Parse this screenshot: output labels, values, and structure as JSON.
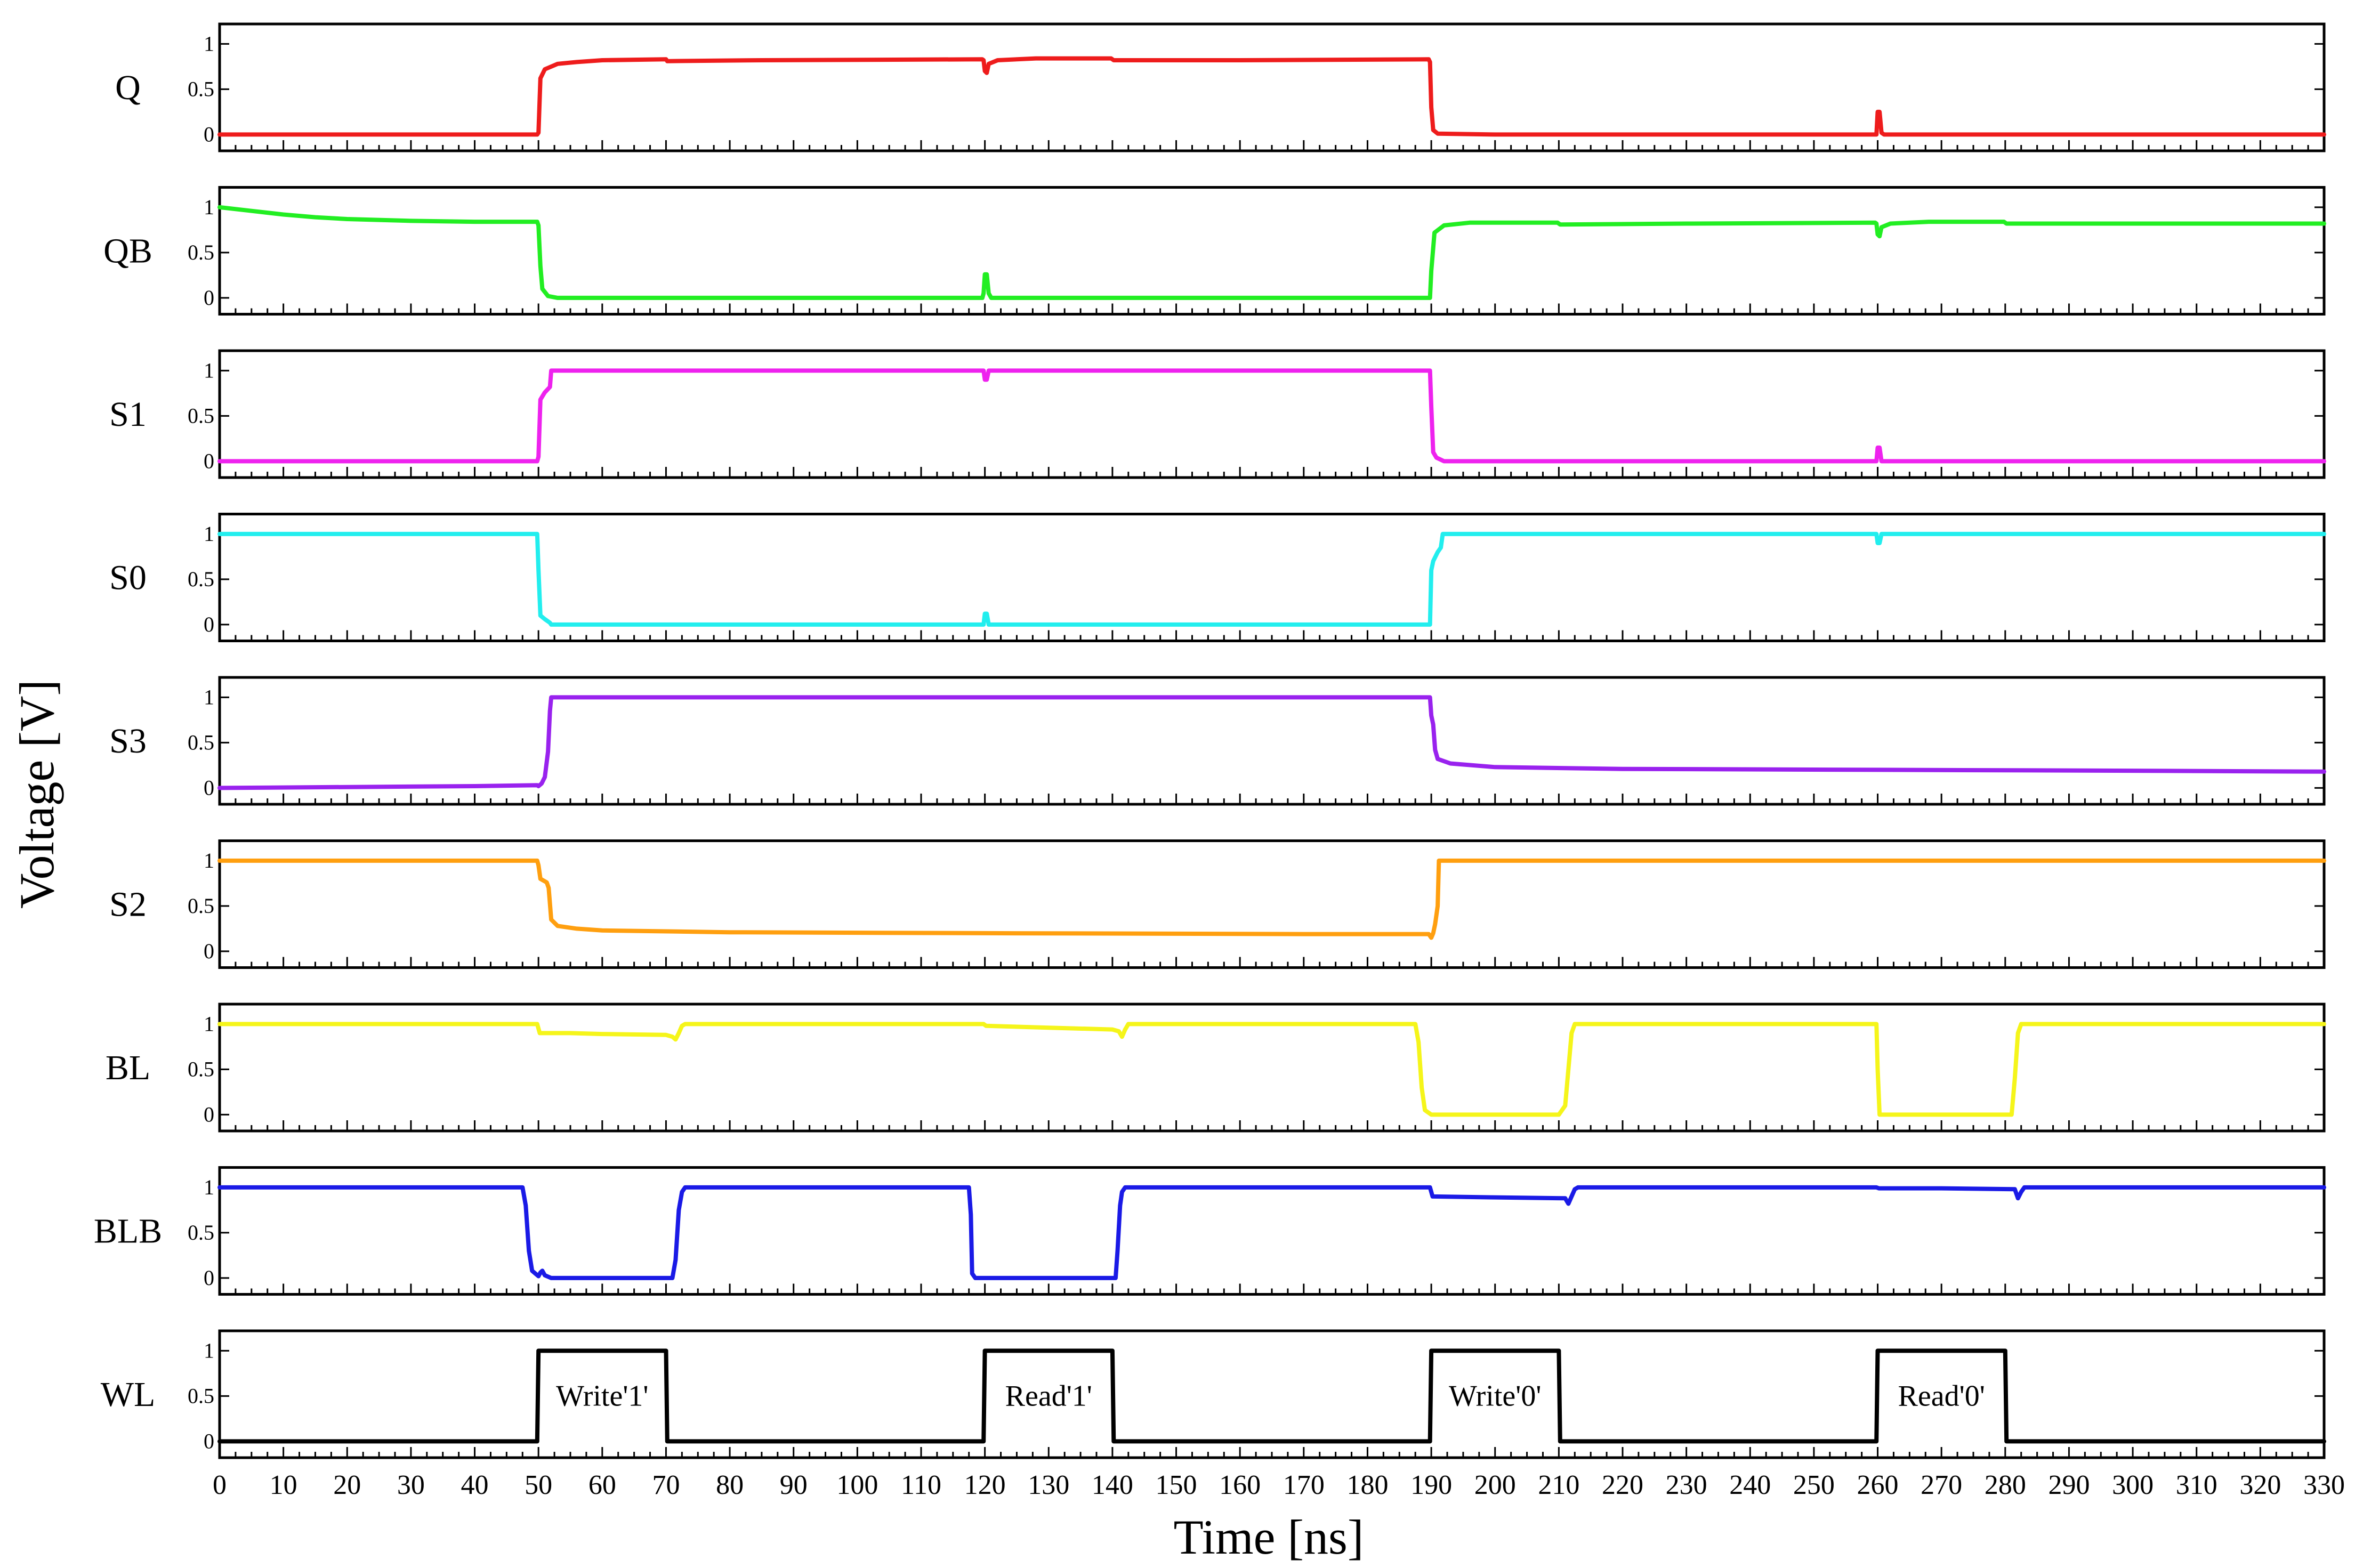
{
  "chart_data": {
    "type": "line",
    "title": "",
    "xlabel": "Time [ns]",
    "ylabel": "Voltage [V]",
    "xlim": [
      0,
      330
    ],
    "x_ticks": [
      0,
      10,
      20,
      30,
      40,
      50,
      60,
      70,
      80,
      90,
      100,
      110,
      120,
      130,
      140,
      150,
      160,
      170,
      180,
      190,
      200,
      210,
      220,
      230,
      240,
      250,
      260,
      270,
      280,
      290,
      300,
      310,
      320,
      330
    ],
    "ylim": [
      -0.18,
      1.22
    ],
    "y_ticks": [
      {
        "value": 0,
        "label": "0"
      },
      {
        "value": 0.5,
        "label": "0.5"
      },
      {
        "value": 1,
        "label": "1"
      }
    ],
    "grid": false,
    "series": [
      {
        "name": "Q",
        "color": "#ee1c1c",
        "points": [
          [
            0,
            0
          ],
          [
            49.8,
            0
          ],
          [
            50,
            0.02
          ],
          [
            50.3,
            0.62
          ],
          [
            51,
            0.72
          ],
          [
            53,
            0.78
          ],
          [
            56,
            0.8
          ],
          [
            60,
            0.82
          ],
          [
            70,
            0.83
          ],
          [
            70.2,
            0.81
          ],
          [
            85,
            0.82
          ],
          [
            119.6,
            0.83
          ],
          [
            119.8,
            0.82
          ],
          [
            120,
            0.7
          ],
          [
            120.3,
            0.68
          ],
          [
            120.6,
            0.78
          ],
          [
            122,
            0.82
          ],
          [
            128,
            0.84
          ],
          [
            139.8,
            0.84
          ],
          [
            140.2,
            0.82
          ],
          [
            160,
            0.82
          ],
          [
            189.6,
            0.83
          ],
          [
            189.8,
            0.8
          ],
          [
            190,
            0.3
          ],
          [
            190.3,
            0.05
          ],
          [
            191,
            0.01
          ],
          [
            200,
            0
          ],
          [
            259.8,
            0
          ],
          [
            260,
            0.25
          ],
          [
            260.3,
            0.25
          ],
          [
            260.6,
            0.02
          ],
          [
            261,
            0
          ],
          [
            330,
            0
          ]
        ]
      },
      {
        "name": "QB",
        "color": "#22ee22",
        "points": [
          [
            0,
            1.0
          ],
          [
            5,
            0.96
          ],
          [
            10,
            0.92
          ],
          [
            15,
            0.89
          ],
          [
            20,
            0.87
          ],
          [
            30,
            0.85
          ],
          [
            40,
            0.84
          ],
          [
            49.8,
            0.84
          ],
          [
            50,
            0.8
          ],
          [
            50.3,
            0.35
          ],
          [
            50.6,
            0.1
          ],
          [
            51.5,
            0.02
          ],
          [
            53,
            0
          ],
          [
            119.6,
            0
          ],
          [
            119.8,
            0.05
          ],
          [
            120,
            0.26
          ],
          [
            120.3,
            0.26
          ],
          [
            120.6,
            0.05
          ],
          [
            121,
            0
          ],
          [
            189.8,
            0
          ],
          [
            190,
            0.3
          ],
          [
            190.5,
            0.72
          ],
          [
            192,
            0.8
          ],
          [
            196,
            0.83
          ],
          [
            209.8,
            0.83
          ],
          [
            210.2,
            0.81
          ],
          [
            230,
            0.82
          ],
          [
            259.6,
            0.83
          ],
          [
            259.8,
            0.82
          ],
          [
            260,
            0.7
          ],
          [
            260.3,
            0.68
          ],
          [
            260.6,
            0.78
          ],
          [
            262,
            0.82
          ],
          [
            268,
            0.84
          ],
          [
            279.8,
            0.84
          ],
          [
            280.2,
            0.82
          ],
          [
            300,
            0.82
          ],
          [
            330,
            0.82
          ]
        ]
      },
      {
        "name": "S1",
        "color": "#ee22ee",
        "points": [
          [
            0,
            0
          ],
          [
            49.8,
            0
          ],
          [
            50,
            0.05
          ],
          [
            50.3,
            0.68
          ],
          [
            51,
            0.76
          ],
          [
            51.8,
            0.82
          ],
          [
            52,
            1.0
          ],
          [
            119.8,
            1.0
          ],
          [
            120,
            0.9
          ],
          [
            120.3,
            0.9
          ],
          [
            120.6,
            1.0
          ],
          [
            189.8,
            1.0
          ],
          [
            190,
            0.6
          ],
          [
            190.3,
            0.1
          ],
          [
            190.8,
            0.04
          ],
          [
            192,
            0
          ],
          [
            259.8,
            0
          ],
          [
            260,
            0.15
          ],
          [
            260.3,
            0.15
          ],
          [
            260.6,
            0
          ],
          [
            330,
            0
          ]
        ]
      },
      {
        "name": "S0",
        "color": "#22eeee",
        "points": [
          [
            0,
            1.0
          ],
          [
            49.8,
            1.0
          ],
          [
            50,
            0.6
          ],
          [
            50.3,
            0.1
          ],
          [
            51,
            0.06
          ],
          [
            51.8,
            0.02
          ],
          [
            52,
            0
          ],
          [
            119.8,
            0
          ],
          [
            120,
            0.12
          ],
          [
            120.3,
            0.12
          ],
          [
            120.6,
            0
          ],
          [
            189.8,
            0
          ],
          [
            190,
            0.6
          ],
          [
            190.3,
            0.7
          ],
          [
            191,
            0.8
          ],
          [
            191.5,
            0.85
          ],
          [
            191.8,
            1.0
          ],
          [
            259.8,
            1.0
          ],
          [
            260,
            0.9
          ],
          [
            260.3,
            0.9
          ],
          [
            260.6,
            1.0
          ],
          [
            330,
            1.0
          ]
        ]
      },
      {
        "name": "S3",
        "color": "#9922ee",
        "points": [
          [
            0,
            0
          ],
          [
            20,
            0.01
          ],
          [
            40,
            0.02
          ],
          [
            49.8,
            0.03
          ],
          [
            50,
            0.02
          ],
          [
            50.5,
            0.05
          ],
          [
            51,
            0.12
          ],
          [
            51.5,
            0.4
          ],
          [
            51.8,
            0.85
          ],
          [
            52,
            1.0
          ],
          [
            189.8,
            1.0
          ],
          [
            190,
            0.8
          ],
          [
            190.3,
            0.7
          ],
          [
            190.6,
            0.42
          ],
          [
            191,
            0.32
          ],
          [
            193,
            0.27
          ],
          [
            200,
            0.23
          ],
          [
            220,
            0.21
          ],
          [
            260,
            0.2
          ],
          [
            300,
            0.19
          ],
          [
            330,
            0.18
          ]
        ]
      },
      {
        "name": "S2",
        "color": "#ff9f0f",
        "points": [
          [
            0,
            1.0
          ],
          [
            49.8,
            1.0
          ],
          [
            50,
            0.95
          ],
          [
            50.3,
            0.8
          ],
          [
            51.3,
            0.76
          ],
          [
            51.6,
            0.7
          ],
          [
            52,
            0.35
          ],
          [
            53,
            0.28
          ],
          [
            56,
            0.25
          ],
          [
            60,
            0.23
          ],
          [
            80,
            0.21
          ],
          [
            120,
            0.2
          ],
          [
            170,
            0.19
          ],
          [
            189.6,
            0.19
          ],
          [
            190,
            0.15
          ],
          [
            190.3,
            0.2
          ],
          [
            190.6,
            0.3
          ],
          [
            191,
            0.5
          ],
          [
            191.2,
            1.0
          ],
          [
            330,
            1.0
          ]
        ]
      },
      {
        "name": "BL",
        "color": "#f5f51a",
        "points": [
          [
            0,
            1.0
          ],
          [
            49.8,
            1.0
          ],
          [
            50.2,
            0.9
          ],
          [
            55,
            0.9
          ],
          [
            60,
            0.89
          ],
          [
            70,
            0.88
          ],
          [
            71,
            0.86
          ],
          [
            71.5,
            0.83
          ],
          [
            72,
            0.9
          ],
          [
            72.5,
            0.98
          ],
          [
            73,
            1.0
          ],
          [
            119.8,
            1.0
          ],
          [
            120.2,
            0.98
          ],
          [
            130,
            0.96
          ],
          [
            140,
            0.94
          ],
          [
            141,
            0.92
          ],
          [
            141.5,
            0.86
          ],
          [
            142,
            0.94
          ],
          [
            142.5,
            1.0
          ],
          [
            187.5,
            1.0
          ],
          [
            188,
            0.8
          ],
          [
            188.5,
            0.3
          ],
          [
            189,
            0.05
          ],
          [
            190,
            0
          ],
          [
            210,
            0
          ],
          [
            211,
            0.1
          ],
          [
            211.5,
            0.5
          ],
          [
            212,
            0.9
          ],
          [
            212.5,
            1.0
          ],
          [
            259.8,
            1.0
          ],
          [
            260,
            0.5
          ],
          [
            260.3,
            0
          ],
          [
            281,
            0
          ],
          [
            281.5,
            0.4
          ],
          [
            282,
            0.9
          ],
          [
            282.5,
            1.0
          ],
          [
            330,
            1.0
          ]
        ]
      },
      {
        "name": "BLB",
        "color": "#1a1ae6",
        "points": [
          [
            0,
            1.0
          ],
          [
            47.5,
            1.0
          ],
          [
            48,
            0.8
          ],
          [
            48.5,
            0.3
          ],
          [
            49,
            0.08
          ],
          [
            50,
            0.02
          ],
          [
            50.3,
            0.06
          ],
          [
            50.6,
            0.08
          ],
          [
            51,
            0.03
          ],
          [
            52,
            0
          ],
          [
            71,
            0
          ],
          [
            71.5,
            0.2
          ],
          [
            72,
            0.75
          ],
          [
            72.5,
            0.95
          ],
          [
            73,
            1.0
          ],
          [
            117.5,
            1.0
          ],
          [
            117.8,
            0.7
          ],
          [
            118,
            0.05
          ],
          [
            118.5,
            0
          ],
          [
            140.5,
            0
          ],
          [
            140.8,
            0.3
          ],
          [
            141.2,
            0.8
          ],
          [
            141.5,
            0.95
          ],
          [
            142,
            1.0
          ],
          [
            189.8,
            1.0
          ],
          [
            190.2,
            0.9
          ],
          [
            200,
            0.89
          ],
          [
            211,
            0.88
          ],
          [
            211.5,
            0.82
          ],
          [
            212,
            0.9
          ],
          [
            212.5,
            0.98
          ],
          [
            213,
            1.0
          ],
          [
            259.8,
            1.0
          ],
          [
            260.2,
            0.99
          ],
          [
            270,
            0.99
          ],
          [
            281.5,
            0.98
          ],
          [
            282,
            0.88
          ],
          [
            282.5,
            0.95
          ],
          [
            283,
            1.0
          ],
          [
            330,
            1.0
          ]
        ]
      },
      {
        "name": "WL",
        "color": "#000000",
        "points": [
          [
            0,
            0
          ],
          [
            49.8,
            0
          ],
          [
            50,
            1.0
          ],
          [
            70,
            1.0
          ],
          [
            70.2,
            0
          ],
          [
            119.8,
            0
          ],
          [
            120,
            1.0
          ],
          [
            140,
            1.0
          ],
          [
            140.2,
            0
          ],
          [
            189.8,
            0
          ],
          [
            190,
            1.0
          ],
          [
            210,
            1.0
          ],
          [
            210.2,
            0
          ],
          [
            259.8,
            0
          ],
          [
            260,
            1.0
          ],
          [
            280,
            1.0
          ],
          [
            280.2,
            0
          ],
          [
            330,
            0
          ]
        ]
      }
    ],
    "annotations": [
      {
        "text": "Write'1'",
        "panel": "WL",
        "x": 60,
        "y": 0.5
      },
      {
        "text": "Read'1'",
        "panel": "WL",
        "x": 130,
        "y": 0.5
      },
      {
        "text": "Write'0'",
        "panel": "WL",
        "x": 200,
        "y": 0.5
      },
      {
        "text": "Read'0'",
        "panel": "WL",
        "x": 270,
        "y": 0.5
      }
    ]
  }
}
